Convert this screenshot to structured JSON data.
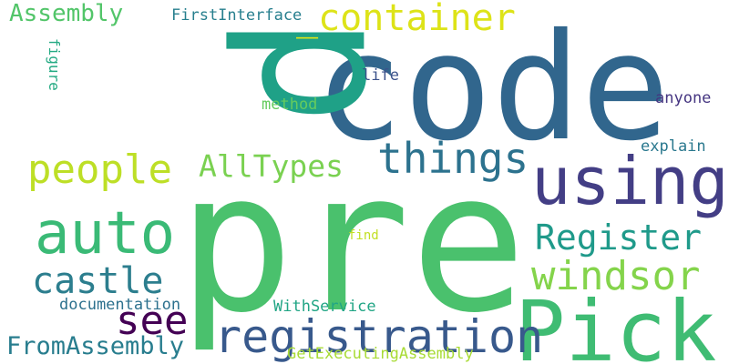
{
  "words": [
    {
      "text": "pre",
      "color": "#4ac16d"
    },
    {
      "text": "code",
      "color": "#31668d"
    },
    {
      "text": "p",
      "color": "#1fa187"
    },
    {
      "text": "using",
      "color": "#433e85"
    },
    {
      "text": "Pick",
      "color": "#3fbc73"
    },
    {
      "text": "auto",
      "color": "#3aba76"
    },
    {
      "text": "registration",
      "color": "#38598c"
    },
    {
      "text": "_container",
      "color": "#dde318"
    },
    {
      "text": "things",
      "color": "#2c728e"
    },
    {
      "text": "people",
      "color": "#bddf26"
    },
    {
      "text": "Register",
      "color": "#1f9a8a"
    },
    {
      "text": "castle",
      "color": "#2c7e8e"
    },
    {
      "text": "windsor",
      "color": "#84d44b"
    },
    {
      "text": "AllTypes",
      "color": "#7ad151"
    },
    {
      "text": "see",
      "color": "#440154"
    },
    {
      "text": "FromAssembly",
      "color": "#287d8e"
    },
    {
      "text": "Assembly",
      "color": "#52c569"
    },
    {
      "text": "FirstInterface",
      "color": "#277f8e"
    },
    {
      "text": "figure",
      "color": "#24aa83"
    },
    {
      "text": "life",
      "color": "#3b528b"
    },
    {
      "text": "method",
      "color": "#65cb5e"
    },
    {
      "text": "anyone",
      "color": "#453581"
    },
    {
      "text": "explain",
      "color": "#2a788e"
    },
    {
      "text": "find",
      "color": "#c2df23"
    },
    {
      "text": "documentation",
      "color": "#2d718e"
    },
    {
      "text": "WithService",
      "color": "#21a585"
    },
    {
      "text": "GetExecutingAssembly",
      "color": "#a8db34"
    }
  ]
}
